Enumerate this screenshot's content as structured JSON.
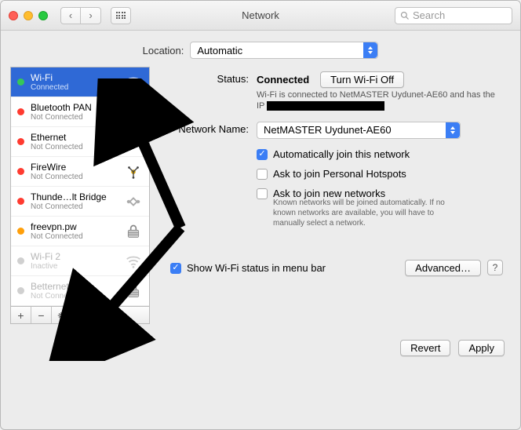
{
  "window": {
    "title": "Network",
    "search_placeholder": "Search"
  },
  "location": {
    "label": "Location:",
    "value": "Automatic"
  },
  "sidebar": {
    "items": [
      {
        "name": "Wi-Fi",
        "status": "Connected",
        "dot": "#35c759",
        "selected": true,
        "icon": "wifi"
      },
      {
        "name": "Bluetooth PAN",
        "status": "Not Connected",
        "dot": "#ff3b30",
        "icon": "bluetooth"
      },
      {
        "name": "Ethernet",
        "status": "Not Connected",
        "dot": "#ff3b30",
        "icon": "ethernet"
      },
      {
        "name": "FireWire",
        "status": "Not Connected",
        "dot": "#ff3b30",
        "icon": "firewire"
      },
      {
        "name": "Thunde…lt Bridge",
        "status": "Not Connected",
        "dot": "#ff3b30",
        "icon": "thunderbolt"
      },
      {
        "name": "freevpn.pw",
        "status": "Not Connected",
        "dot": "#ff9f0a",
        "icon": "vpn"
      },
      {
        "name": "Wi-Fi 2",
        "status": "Inactive",
        "dot": "#d0d0d0",
        "icon": "wifi",
        "inactive": true
      },
      {
        "name": "Betternet VPN",
        "status": "Not Connected",
        "dot": "#d0d0d0",
        "icon": "vpn",
        "inactive": true
      }
    ],
    "footer": {
      "add": "+",
      "remove": "−",
      "gear": "✱⌄"
    }
  },
  "main": {
    "status_label": "Status:",
    "status_value": "Connected",
    "turn_off": "Turn Wi-Fi Off",
    "status_detail_prefix": "Wi-Fi is connected to NetMASTER Uydunet-AE60 and has the IP",
    "network_name_label": "Network Name:",
    "network_name_value": "NetMASTER Uydunet-AE60",
    "auto_join": "Automatically join this network",
    "personal_hotspots": "Ask to join Personal Hotspots",
    "ask_new": "Ask to join new networks",
    "ask_new_help": "Known networks will be joined automatically. If no known networks are available, you will have to manually select a network.",
    "show_status": "Show Wi-Fi status in menu bar",
    "advanced": "Advanced…",
    "help": "?"
  },
  "buttons": {
    "revert": "Revert",
    "apply": "Apply"
  },
  "colors": {
    "selection": "#2f69d6",
    "accent": "#3b7ef5"
  }
}
